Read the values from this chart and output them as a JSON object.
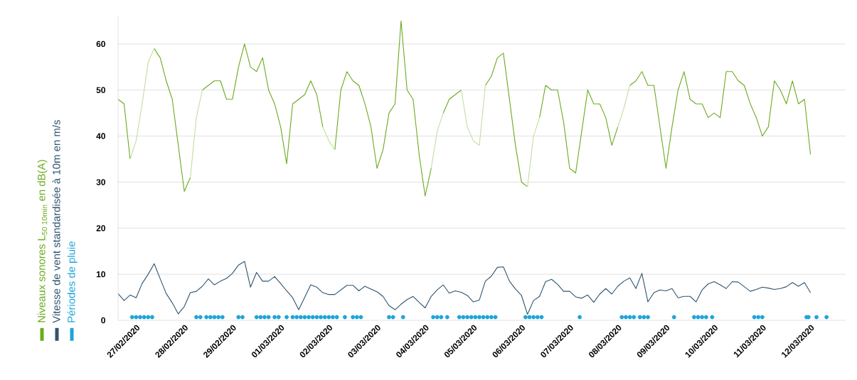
{
  "chart_data": {
    "type": "line",
    "grid": "y",
    "legend": "left",
    "ylim": [
      0,
      66
    ],
    "yticks": [
      0,
      10,
      20,
      30,
      40,
      50,
      60
    ],
    "xlim": [
      "2020-02-26T15:00",
      "2020-03-12T17:30"
    ],
    "xticks": [
      {
        "value": "2020-02-27",
        "label": "27/02/2020"
      },
      {
        "value": "2020-02-28",
        "label": "28/02/2020"
      },
      {
        "value": "2020-02-29",
        "label": "29/02/2020"
      },
      {
        "value": "2020-03-01",
        "label": "01/03/2020"
      },
      {
        "value": "2020-03-02",
        "label": "02/03/2020"
      },
      {
        "value": "2020-03-03",
        "label": "03/03/2020"
      },
      {
        "value": "2020-03-04",
        "label": "04/03/2020"
      },
      {
        "value": "2020-03-05",
        "label": "05/03/2020"
      },
      {
        "value": "2020-03-06",
        "label": "06/03/2020"
      },
      {
        "value": "2020-03-07",
        "label": "07/03/2020"
      },
      {
        "value": "2020-03-08",
        "label": "08/03/2020"
      },
      {
        "value": "2020-03-09",
        "label": "09/03/2020"
      },
      {
        "value": "2020-03-10",
        "label": "10/03/2020"
      },
      {
        "value": "2020-03-11",
        "label": "11/03/2020"
      },
      {
        "value": "2020-03-12",
        "label": "12/03/2020"
      }
    ],
    "x": [
      "2020-02-26T15:00",
      "2020-02-26T18:00",
      "2020-02-26T21:00",
      "2020-02-27T00:00",
      "2020-02-27T03:00",
      "2020-02-27T06:00",
      "2020-02-27T09:00",
      "2020-02-27T12:00",
      "2020-02-27T15:00",
      "2020-02-27T18:00",
      "2020-02-27T21:00",
      "2020-02-28T00:00",
      "2020-02-28T03:00",
      "2020-02-28T06:00",
      "2020-02-28T09:00",
      "2020-02-28T12:00",
      "2020-02-28T15:00",
      "2020-02-28T18:00",
      "2020-02-28T21:00",
      "2020-02-29T00:00",
      "2020-02-29T03:00",
      "2020-02-29T06:00",
      "2020-02-29T09:00",
      "2020-02-29T12:00",
      "2020-02-29T15:00",
      "2020-02-29T18:00",
      "2020-02-29T21:00",
      "2020-03-01T00:00",
      "2020-03-01T03:00",
      "2020-03-01T06:00",
      "2020-03-01T09:00",
      "2020-03-01T12:00",
      "2020-03-01T15:00",
      "2020-03-01T18:00",
      "2020-03-01T21:00",
      "2020-03-02T00:00",
      "2020-03-02T03:00",
      "2020-03-02T06:00",
      "2020-03-02T09:00",
      "2020-03-02T12:00",
      "2020-03-02T15:00",
      "2020-03-02T18:00",
      "2020-03-02T21:00",
      "2020-03-03T00:00",
      "2020-03-03T03:00",
      "2020-03-03T06:00",
      "2020-03-03T09:00",
      "2020-03-03T12:00",
      "2020-03-03T15:00",
      "2020-03-03T18:00",
      "2020-03-03T21:00",
      "2020-03-04T00:00",
      "2020-03-04T03:00",
      "2020-03-04T06:00",
      "2020-03-04T09:00",
      "2020-03-04T12:00",
      "2020-03-04T15:00",
      "2020-03-04T18:00",
      "2020-03-04T21:00",
      "2020-03-05T00:00",
      "2020-03-05T03:00",
      "2020-03-05T06:00",
      "2020-03-05T09:00",
      "2020-03-05T12:00",
      "2020-03-05T15:00",
      "2020-03-05T18:00",
      "2020-03-05T21:00",
      "2020-03-06T00:00",
      "2020-03-06T03:00",
      "2020-03-06T06:00",
      "2020-03-06T09:00",
      "2020-03-06T12:00",
      "2020-03-06T15:00",
      "2020-03-06T18:00",
      "2020-03-06T21:00",
      "2020-03-07T00:00",
      "2020-03-07T03:00",
      "2020-03-07T06:00",
      "2020-03-07T09:00",
      "2020-03-07T12:00",
      "2020-03-07T15:00",
      "2020-03-07T18:00",
      "2020-03-07T21:00",
      "2020-03-08T00:00",
      "2020-03-08T03:00",
      "2020-03-08T06:00",
      "2020-03-08T09:00",
      "2020-03-08T12:00",
      "2020-03-08T15:00",
      "2020-03-08T18:00",
      "2020-03-08T21:00",
      "2020-03-09T00:00",
      "2020-03-09T03:00",
      "2020-03-09T06:00",
      "2020-03-09T09:00",
      "2020-03-09T12:00",
      "2020-03-09T15:00",
      "2020-03-09T18:00",
      "2020-03-09T21:00",
      "2020-03-10T00:00",
      "2020-03-10T03:00",
      "2020-03-10T06:00",
      "2020-03-10T09:00",
      "2020-03-10T12:00",
      "2020-03-10T15:00",
      "2020-03-10T18:00",
      "2020-03-10T21:00",
      "2020-03-11T00:00",
      "2020-03-11T03:00",
      "2020-03-11T06:00",
      "2020-03-11T09:00",
      "2020-03-11T12:00",
      "2020-03-11T15:00",
      "2020-03-11T18:00",
      "2020-03-11T21:00",
      "2020-03-12T00:00"
    ],
    "series": [
      {
        "name": "Niveaux sonores L$_{50 10min}$ en dB(A)",
        "color": "#6aaa1e",
        "values": [
          48,
          47,
          35,
          null,
          null,
          null,
          59,
          57,
          52,
          48,
          38,
          28,
          31,
          null,
          50,
          51,
          52,
          52,
          48,
          48,
          55,
          60,
          55,
          54,
          57,
          50,
          47,
          42,
          34,
          47,
          48,
          49,
          52,
          49,
          42,
          null,
          37,
          50,
          54,
          52,
          51,
          47,
          42,
          33,
          37,
          45,
          47,
          65,
          50,
          48,
          36,
          27,
          33,
          null,
          45,
          48,
          49,
          50,
          null,
          null,
          null,
          51,
          53,
          57,
          58,
          48,
          38,
          30,
          29,
          null,
          44,
          51,
          50,
          50,
          43,
          33,
          32,
          41,
          50,
          47,
          47,
          44,
          38,
          42,
          null,
          51,
          52,
          54,
          51,
          51,
          42,
          33,
          42,
          50,
          54,
          48,
          47,
          47,
          44,
          45,
          44,
          54,
          54,
          52,
          51,
          47,
          44,
          40,
          42,
          52,
          50,
          47,
          52,
          47,
          48,
          36
        ]
      },
      {
        "name": "Vitesse de vent standardisée à 10m en m/s",
        "color": "#2e5470",
        "values": [
          5.8,
          4.3,
          5.5,
          4.9,
          8.0,
          10.0,
          12.3,
          9.0,
          5.8,
          3.8,
          1.4,
          3.0,
          6.0,
          6.3,
          7.4,
          9.0,
          7.7,
          8.5,
          9.1,
          10.2,
          12.0,
          12.8,
          7.2,
          10.4,
          8.5,
          8.5,
          9.5,
          8.0,
          6.4,
          4.9,
          2.3,
          5.0,
          7.7,
          7.2,
          6.0,
          5.6,
          5.6,
          6.6,
          7.6,
          7.6,
          6.4,
          7.4,
          6.8,
          6.2,
          5.2,
          3.2,
          2.3,
          3.5,
          4.5,
          5.2,
          3.9,
          2.7,
          5.2,
          6.6,
          7.7,
          5.9,
          6.4,
          6.1,
          5.4,
          4.0,
          4.4,
          8.5,
          9.6,
          11.5,
          11.6,
          8.5,
          6.8,
          5.4,
          1.3,
          4.3,
          5.2,
          8.4,
          8.9,
          7.8,
          6.3,
          6.3,
          5.1,
          4.8,
          5.5,
          3.9,
          5.7,
          6.9,
          5.7,
          7.4,
          8.5,
          9.2,
          6.9,
          10.2,
          4.0,
          6.0,
          6.6,
          6.4,
          6.9,
          4.9,
          5.2,
          5.2,
          4.0,
          6.6,
          7.9,
          8.4,
          7.7,
          6.9,
          8.4,
          8.3,
          7.3,
          6.3,
          6.7,
          7.2,
          7.0,
          6.7,
          6.9,
          7.3,
          8.2,
          7.4,
          8.2,
          6.0
        ]
      },
      {
        "name": "Périodes de pluie",
        "type": "scatter",
        "color": "#1ea5d8",
        "x": [
          "2020-02-26T22:00",
          "2020-02-27T00:00",
          "2020-02-27T02:00",
          "2020-02-27T04:00",
          "2020-02-27T06:00",
          "2020-02-27T08:00",
          "2020-02-28T06:00",
          "2020-02-28T08:00",
          "2020-02-28T11:00",
          "2020-02-28T13:00",
          "2020-02-28T15:00",
          "2020-02-28T17:00",
          "2020-02-28T19:00",
          "2020-02-29T03:00",
          "2020-02-29T05:00",
          "2020-02-29T12:00",
          "2020-02-29T14:00",
          "2020-02-29T16:00",
          "2020-02-29T18:00",
          "2020-02-29T21:00",
          "2020-02-29T23:00",
          "2020-03-01T03:00",
          "2020-03-01T06:00",
          "2020-03-01T08:00",
          "2020-03-01T10:00",
          "2020-03-01T12:00",
          "2020-03-01T14:00",
          "2020-03-01T16:00",
          "2020-03-01T18:00",
          "2020-03-01T20:00",
          "2020-03-01T22:00",
          "2020-03-02T00:00",
          "2020-03-02T02:00",
          "2020-03-02T04:00",
          "2020-03-02T08:00",
          "2020-03-02T12:00",
          "2020-03-02T14:00",
          "2020-03-02T16:00",
          "2020-03-03T06:00",
          "2020-03-03T08:00",
          "2020-03-03T13:00",
          "2020-03-04T04:00",
          "2020-03-04T06:00",
          "2020-03-04T08:00",
          "2020-03-04T11:00",
          "2020-03-04T17:00",
          "2020-03-04T19:00",
          "2020-03-04T21:00",
          "2020-03-04T23:00",
          "2020-03-05T01:00",
          "2020-03-05T03:00",
          "2020-03-05T05:00",
          "2020-03-05T07:00",
          "2020-03-05T09:00",
          "2020-03-05T11:00",
          "2020-03-06T02:00",
          "2020-03-06T04:00",
          "2020-03-06T06:00",
          "2020-03-06T08:00",
          "2020-03-06T10:00",
          "2020-03-07T05:00",
          "2020-03-08T02:00",
          "2020-03-08T04:00",
          "2020-03-08T06:00",
          "2020-03-08T08:00",
          "2020-03-08T11:00",
          "2020-03-08T13:00",
          "2020-03-08T15:00",
          "2020-03-09T04:00",
          "2020-03-09T14:00",
          "2020-03-09T16:00",
          "2020-03-09T18:00",
          "2020-03-09T20:00",
          "2020-03-09T23:00",
          "2020-03-10T20:00",
          "2020-03-10T22:00",
          "2020-03-11T00:00",
          "2020-03-11T22:00",
          "2020-03-11T23:00",
          "2020-03-12T03:00",
          "2020-03-12T08:00"
        ],
        "values": [
          0.7,
          0.7,
          0.7,
          0.7,
          0.7,
          0.7,
          0.7,
          0.7,
          0.7,
          0.7,
          0.7,
          0.7,
          0.7,
          0.7,
          0.7,
          0.7,
          0.7,
          0.7,
          0.7,
          0.7,
          0.7,
          0.7,
          0.7,
          0.7,
          0.7,
          0.7,
          0.7,
          0.7,
          0.7,
          0.7,
          0.7,
          0.7,
          0.7,
          0.7,
          0.7,
          0.7,
          0.7,
          0.7,
          0.7,
          0.7,
          0.7,
          0.7,
          0.7,
          0.7,
          0.7,
          0.7,
          0.7,
          0.7,
          0.7,
          0.7,
          0.7,
          0.7,
          0.7,
          0.7,
          0.7,
          0.7,
          0.7,
          0.7,
          0.7,
          0.7,
          0.7,
          0.7,
          0.7,
          0.7,
          0.7,
          0.7,
          0.7,
          0.7,
          0.7,
          0.7,
          0.7,
          0.7,
          0.7,
          0.7,
          0.7,
          0.7,
          0.7,
          0.7,
          0.7,
          0.7,
          0.7
        ]
      },
      {
        "color": "#c2dea0",
        "values": [
          null,
          null,
          35,
          39,
          47,
          56,
          59,
          null,
          null,
          null,
          null,
          null,
          31,
          44,
          50,
          null,
          null,
          null,
          null,
          null,
          null,
          null,
          null,
          null,
          null,
          null,
          null,
          null,
          null,
          null,
          null,
          null,
          null,
          null,
          42,
          39,
          37,
          null,
          null,
          null,
          null,
          null,
          null,
          null,
          null,
          null,
          null,
          null,
          null,
          null,
          null,
          null,
          33,
          41,
          45,
          null,
          null,
          50,
          42,
          39,
          38,
          51,
          null,
          null,
          null,
          null,
          null,
          null,
          29,
          40,
          44,
          null,
          null,
          null,
          null,
          null,
          null,
          null,
          null,
          null,
          null,
          null,
          null,
          42,
          46,
          51,
          null,
          null,
          null,
          null,
          null,
          null,
          null,
          null,
          null,
          null,
          null,
          null,
          null,
          null,
          null,
          null,
          null,
          null,
          null,
          null,
          null,
          null,
          null,
          null,
          null,
          null,
          null,
          null,
          null,
          null
        ]
      }
    ]
  }
}
